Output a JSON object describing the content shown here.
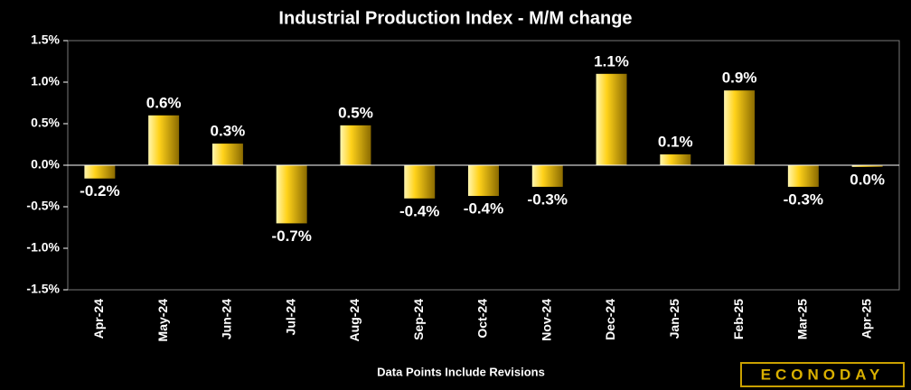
{
  "chart_data": {
    "type": "bar",
    "title": "Industrial Production Index - M/M change",
    "categories": [
      "Apr-24",
      "May-24",
      "Jun-24",
      "Jul-24",
      "Aug-24",
      "Sep-24",
      "Oct-24",
      "Nov-24",
      "Dec-24",
      "Jan-25",
      "Feb-25",
      "Mar-25",
      "Apr-25"
    ],
    "values": [
      -0.16,
      0.6,
      0.26,
      -0.7,
      0.48,
      -0.4,
      -0.37,
      -0.26,
      1.1,
      0.13,
      0.9,
      -0.26,
      -0.02
    ],
    "value_labels": [
      "-0.2%",
      "0.6%",
      "0.3%",
      "-0.7%",
      "0.5%",
      "-0.4%",
      "-0.4%",
      "-0.3%",
      "1.1%",
      "0.1%",
      "0.9%",
      "-0.3%",
      "0.0%"
    ],
    "color": "#f2c200",
    "ylim": [
      -1.5,
      1.5
    ],
    "yticks": [
      {
        "value": -1.5,
        "label": "-1.5%"
      },
      {
        "value": -1.0,
        "label": "-1.0%"
      },
      {
        "value": -0.5,
        "label": "-0.5%"
      },
      {
        "value": 0,
        "label": "0.0%"
      },
      {
        "value": 0.5,
        "label": "0.5%"
      },
      {
        "value": 1.0,
        "label": "1.0%"
      },
      {
        "value": 1.5,
        "label": "1.5%"
      }
    ],
    "note": "Data Points Include Revisions",
    "brand": "ECONODAY"
  }
}
